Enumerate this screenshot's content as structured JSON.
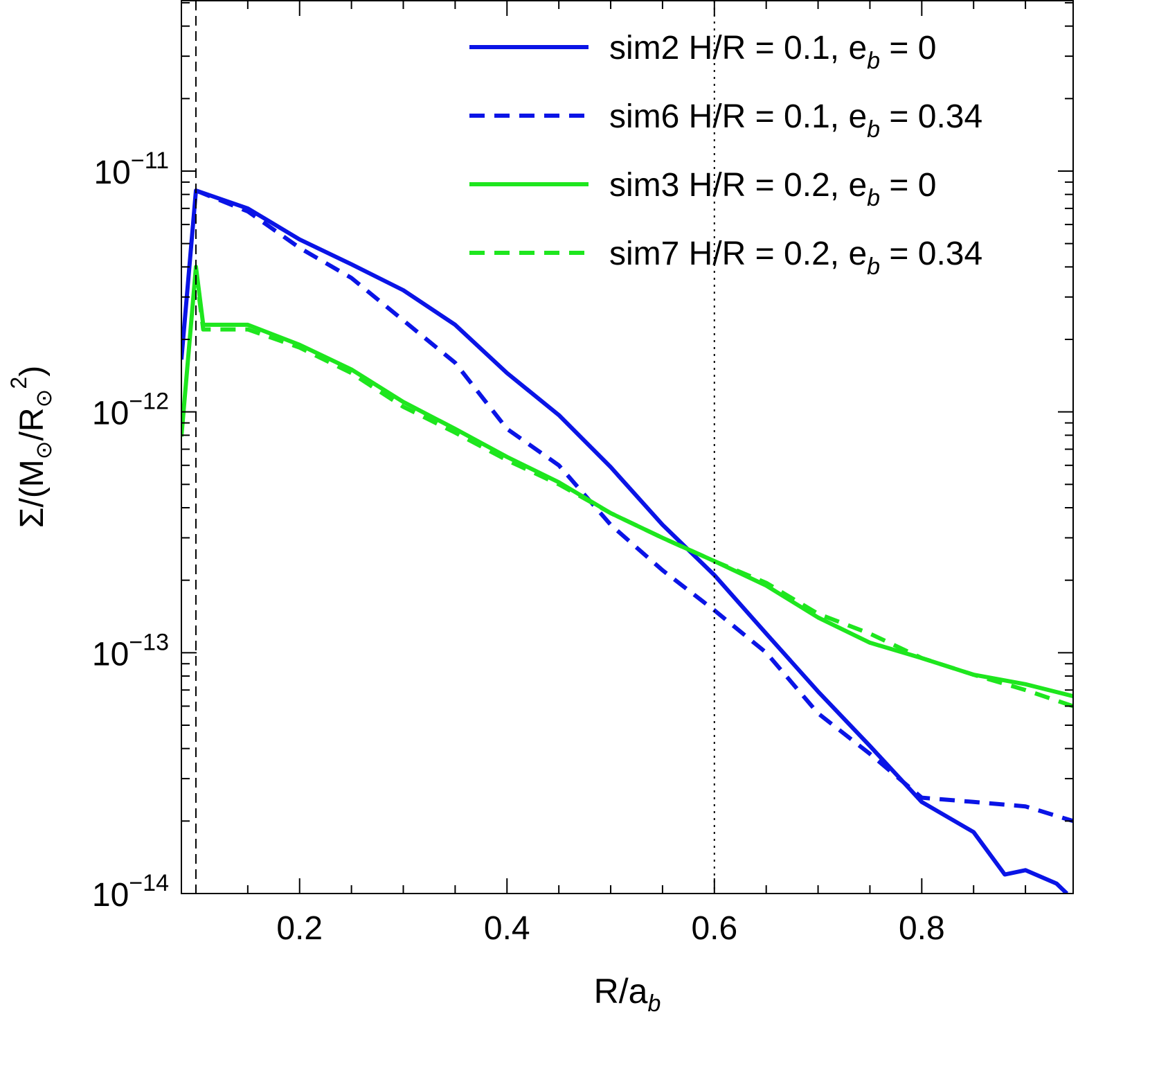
{
  "chart_data": {
    "type": "line",
    "xlabel": {
      "main": "R/a",
      "sub": "b"
    },
    "ylabel": {
      "pre": "Σ/(M",
      "sub1": "⊙",
      "mid": "/R",
      "sub2": "⊙",
      "sup": "2",
      "post": ")"
    },
    "xlim": [
      0.086,
      0.946
    ],
    "ylim": [
      1e-14,
      5.1e-11
    ],
    "yscale": "log",
    "grid": false,
    "legend_position": "top-right",
    "x_ticks": [
      0.2,
      0.4,
      0.6,
      0.8
    ],
    "x_tick_labels": [
      "0.2",
      "0.4",
      "0.6",
      "0.8"
    ],
    "y_ticks": [
      1e-11,
      1e-12,
      1e-13,
      1e-14
    ],
    "y_tick_labels": [
      {
        "base": "10",
        "exp": "−11"
      },
      {
        "base": "10",
        "exp": "−12"
      },
      {
        "base": "10",
        "exp": "−13"
      },
      {
        "base": "10",
        "exp": "−14"
      }
    ],
    "reference_lines": [
      {
        "x": 0.1,
        "style": "dashed",
        "color": "#000000"
      },
      {
        "x": 0.6,
        "style": "dotted",
        "color": "#000000"
      }
    ],
    "series": [
      {
        "label": {
          "pre": "sim2 H/R = 0.1, e",
          "sub": "b",
          "post": " = 0"
        },
        "color": "#0a14e6",
        "style": "solid",
        "x": [
          0.086,
          0.1,
          0.15,
          0.2,
          0.25,
          0.3,
          0.35,
          0.4,
          0.45,
          0.5,
          0.55,
          0.6,
          0.65,
          0.7,
          0.75,
          0.8,
          0.85,
          0.88,
          0.9,
          0.93,
          0.94
        ],
        "y": [
          1.65e-12,
          8.3e-12,
          7e-12,
          5.2e-12,
          4.1e-12,
          3.2e-12,
          2.3e-12,
          1.45e-12,
          9.7e-13,
          5.9e-13,
          3.4e-13,
          2.1e-13,
          1.2e-13,
          6.9e-14,
          4.1e-14,
          2.4e-14,
          1.8e-14,
          1.2e-14,
          1.25e-14,
          1.1e-14,
          1e-14
        ]
      },
      {
        "label": {
          "pre": "sim6 H/R = 0.1, e",
          "sub": "b",
          "post": " = 0.34"
        },
        "color": "#0a14e6",
        "style": "dashed",
        "x": [
          0.1,
          0.15,
          0.2,
          0.25,
          0.3,
          0.35,
          0.4,
          0.45,
          0.5,
          0.55,
          0.6,
          0.65,
          0.7,
          0.75,
          0.8,
          0.85,
          0.9,
          0.946
        ],
        "y": [
          8.3e-12,
          6.8e-12,
          4.8e-12,
          3.6e-12,
          2.4e-12,
          1.6e-12,
          8.5e-13,
          6e-13,
          3.4e-13,
          2.2e-13,
          1.5e-13,
          1e-13,
          5.6e-14,
          3.8e-14,
          2.5e-14,
          2.4e-14,
          2.3e-14,
          2e-14
        ]
      },
      {
        "label": {
          "pre": "sim3 H/R = 0.2, e",
          "sub": "b",
          "post": " = 0"
        },
        "color": "#1ee61e",
        "style": "solid",
        "x": [
          0.086,
          0.1,
          0.107,
          0.15,
          0.2,
          0.25,
          0.3,
          0.35,
          0.4,
          0.45,
          0.5,
          0.55,
          0.6,
          0.65,
          0.7,
          0.75,
          0.8,
          0.85,
          0.9,
          0.946
        ],
        "y": [
          7.9e-13,
          4e-12,
          2.3e-12,
          2.3e-12,
          1.9e-12,
          1.5e-12,
          1.1e-12,
          8.5e-13,
          6.5e-13,
          5.1e-13,
          3.8e-13,
          3e-13,
          2.4e-13,
          1.9e-13,
          1.4e-13,
          1.1e-13,
          9.5e-14,
          8.1e-14,
          7.4e-14,
          6.6e-14
        ]
      },
      {
        "label": {
          "pre": "sim7 H/R = 0.2, e",
          "sub": "b",
          "post": " = 0.34"
        },
        "color": "#1ee61e",
        "style": "dashed",
        "x": [
          0.1,
          0.107,
          0.15,
          0.2,
          0.25,
          0.3,
          0.35,
          0.4,
          0.45,
          0.5,
          0.55,
          0.6,
          0.65,
          0.7,
          0.75,
          0.8,
          0.85,
          0.9,
          0.946
        ],
        "y": [
          3.8e-12,
          2.2e-12,
          2.2e-12,
          1.85e-12,
          1.45e-12,
          1.05e-12,
          8.2e-13,
          6.3e-13,
          5e-13,
          3.8e-13,
          3e-13,
          2.4e-13,
          1.95e-13,
          1.45e-13,
          1.2e-13,
          9.5e-14,
          8.1e-14,
          7e-14,
          6e-14
        ]
      }
    ]
  }
}
